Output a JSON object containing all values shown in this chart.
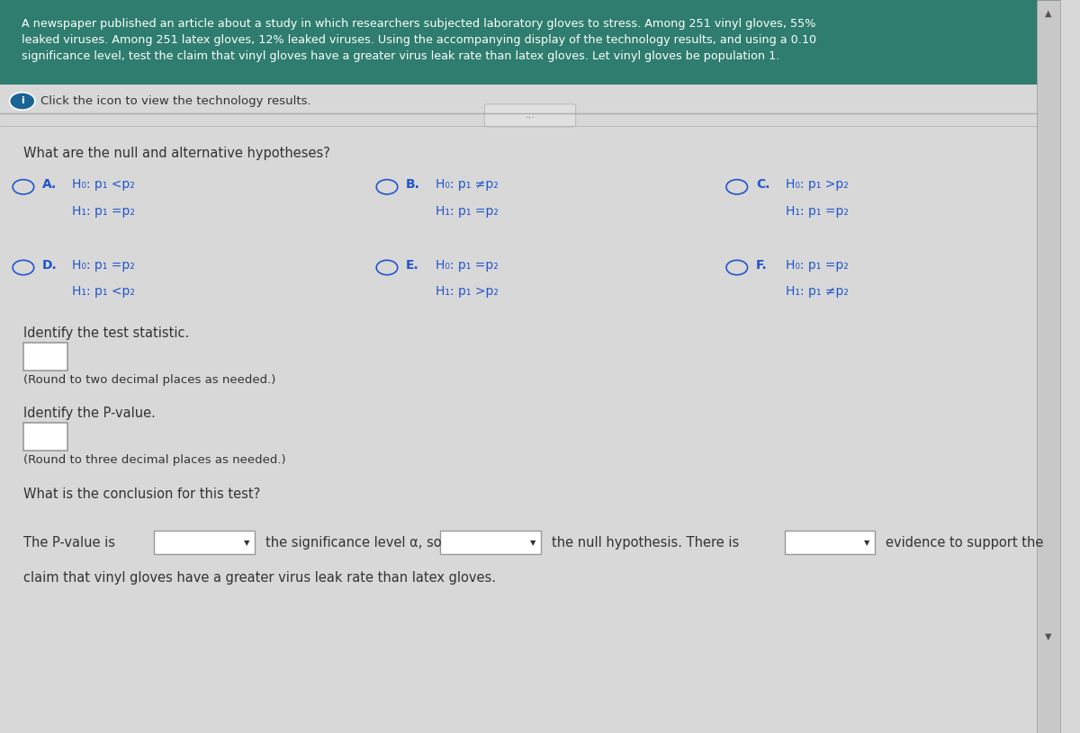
{
  "bg_color": "#d8d8d8",
  "header_bg": "#2e7d6e",
  "header_text": "A newspaper published an article about a study in which researchers subjected laboratory gloves to stress. Among 251 vinyl gloves, 55%\nleaked viruses. Among 251 latex gloves, 12% leaked viruses. Using the accompanying display of the technology results, and using a 0.10\nsignificance level, test the claim that vinyl gloves have a greater virus leak rate than latex gloves. Let vinyl gloves be population 1.",
  "click_icon_text": "Click the icon to view the technology results.",
  "section_question": "What are the null and alternative hypotheses?",
  "options": [
    {
      "label": "A.",
      "h0": "H₀: p₁ <p₂",
      "h1": "H₁: p₁ =p₂"
    },
    {
      "label": "B.",
      "h0": "H₀: p₁ ≠p₂",
      "h1": "H₁: p₁ =p₂"
    },
    {
      "label": "C.",
      "h0": "H₀: p₁ >p₂",
      "h1": "H₁: p₁ =p₂"
    },
    {
      "label": "D.",
      "h0": "H₀: p₁ =p₂",
      "h1": "H₁: p₁ <p₂"
    },
    {
      "label": "E.",
      "h0": "H₀: p₁ =p₂",
      "h1": "H₁: p₁ >p₂"
    },
    {
      "label": "F.",
      "h0": "H₀: p₁ =p₂",
      "h1": "H₁: p₁ ≠p₂"
    }
  ],
  "test_statistic_label": "Identify the test statistic.",
  "test_statistic_note": "(Round to two decimal places as needed.)",
  "pvalue_label": "Identify the P-value.",
  "pvalue_note": "(Round to three decimal places as needed.)",
  "conclusion_label": "What is the conclusion for this test?",
  "conclusion_text_1": "The P-value is",
  "conclusion_text_2": "the significance level α, so",
  "conclusion_text_3": "the null hypothesis. There is",
  "conclusion_text_4": "evidence to support the",
  "conclusion_text_5": "claim that vinyl gloves have a greater virus leak rate than latex gloves.",
  "text_color": "#333333",
  "option_color": "#2255cc",
  "separator_color": "#aaaaaa",
  "box_color": "#e8e8e8",
  "box_border": "#999999"
}
